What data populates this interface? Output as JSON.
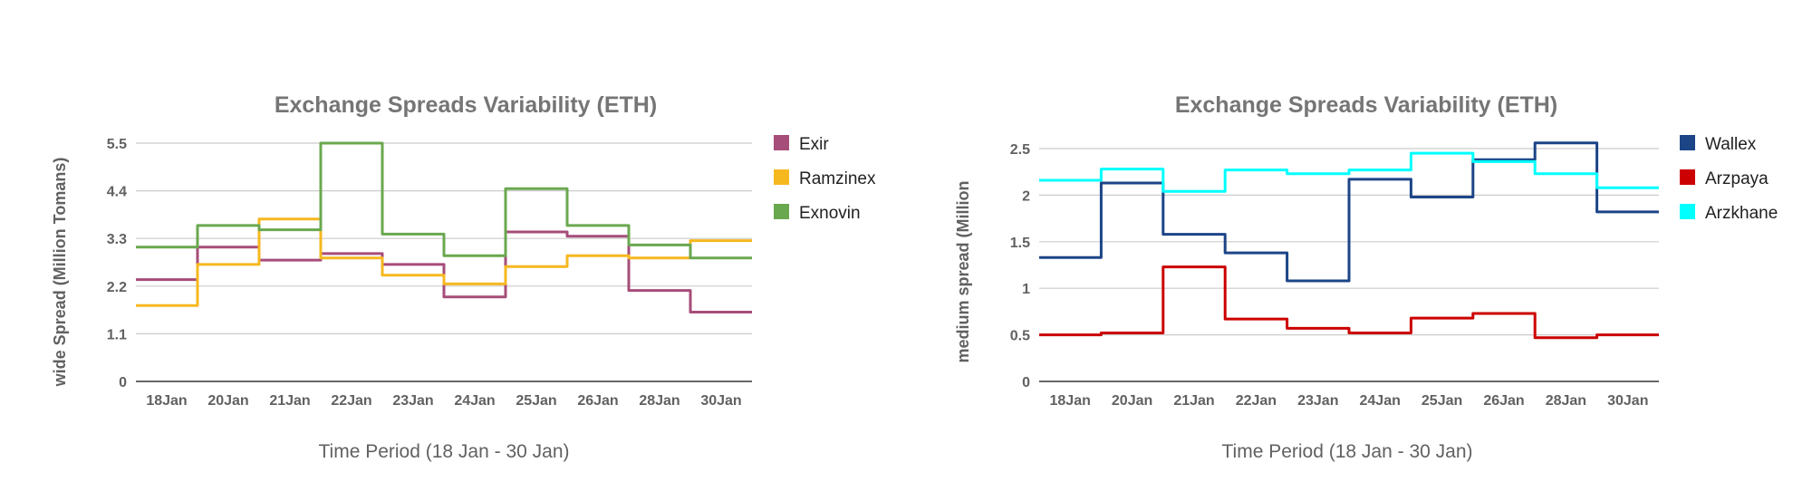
{
  "chart_data": [
    {
      "type": "line",
      "step": true,
      "title": "Exchange Spreads Variability (ETH)",
      "xlabel": "Time Period (18 Jan - 30 Jan)",
      "ylabel": "wide Spread (Million Tomans)",
      "categories": [
        "18Jan",
        "20Jan",
        "21Jan",
        "22Jan",
        "23Jan",
        "24Jan",
        "25Jan",
        "26Jan",
        "28Jan",
        "30Jan"
      ],
      "yticks": [
        "0",
        "1.1",
        "2.2",
        "3.3",
        "4.4",
        "5.5"
      ],
      "ylim": [
        0,
        5.5
      ],
      "grid": true,
      "legend_position": "right",
      "series": [
        {
          "name": "Exir",
          "color": "#a64d79",
          "values": [
            2.35,
            3.1,
            2.8,
            2.95,
            2.7,
            1.95,
            3.45,
            3.35,
            2.1,
            1.6
          ]
        },
        {
          "name": "Ramzinex",
          "color": "#f6b81f",
          "values": [
            1.75,
            2.7,
            3.75,
            2.85,
            2.45,
            2.25,
            2.65,
            2.9,
            2.85,
            3.25
          ]
        },
        {
          "name": "Exnovin",
          "color": "#6aa84f",
          "values": [
            3.1,
            3.6,
            3.5,
            5.5,
            3.4,
            2.9,
            4.45,
            3.6,
            3.15,
            2.85
          ]
        }
      ]
    },
    {
      "type": "line",
      "step": true,
      "title": "Exchange Spreads Variability (ETH)",
      "xlabel": "Time Period (18 Jan - 30 Jan)",
      "ylabel": "medium spread (Million",
      "categories": [
        "18Jan",
        "20Jan",
        "21Jan",
        "22Jan",
        "23Jan",
        "24Jan",
        "25Jan",
        "26Jan",
        "28Jan",
        "30Jan"
      ],
      "yticks": [
        "0",
        "0.5",
        "1",
        "1.5",
        "2",
        "2.5"
      ],
      "ylim": [
        0,
        2.5
      ],
      "grid": true,
      "legend_position": "right",
      "series": [
        {
          "name": "Wallex",
          "color": "#1c4587",
          "values": [
            1.33,
            2.13,
            1.58,
            1.38,
            1.08,
            2.17,
            1.98,
            2.38,
            2.56,
            1.82
          ]
        },
        {
          "name": "Arzpaya",
          "color": "#cc0000",
          "values": [
            0.5,
            0.52,
            1.23,
            0.67,
            0.57,
            0.52,
            0.68,
            0.73,
            0.47,
            0.5
          ]
        },
        {
          "name": "Arzkhane",
          "color": "#00ffff",
          "values": [
            2.16,
            2.28,
            2.04,
            2.27,
            2.23,
            2.27,
            2.45,
            2.36,
            2.23,
            2.08
          ]
        }
      ]
    }
  ]
}
